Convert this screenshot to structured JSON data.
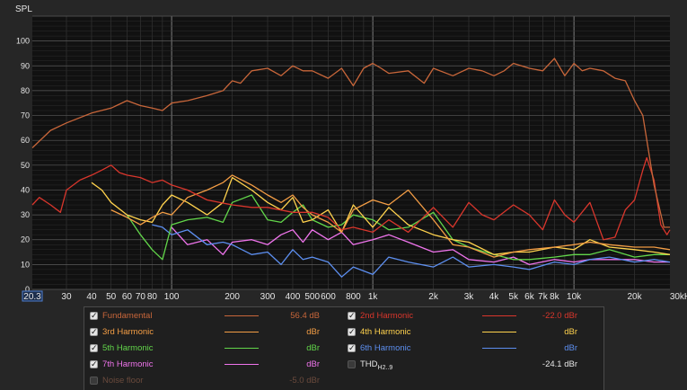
{
  "chart_data": {
    "type": "line",
    "ylabel": "SPL",
    "xscale": "log",
    "xlim": [
      20.3,
      30000
    ],
    "ylim": [
      0,
      110
    ],
    "grid": true,
    "y_ticks": [
      0,
      10,
      20,
      30,
      40,
      50,
      60,
      70,
      80,
      90,
      100
    ],
    "x_ticks": [
      {
        "v": 20.3,
        "label": "20.3"
      },
      {
        "v": 30,
        "label": "30"
      },
      {
        "v": 40,
        "label": "40"
      },
      {
        "v": 50,
        "label": "50"
      },
      {
        "v": 60,
        "label": "60"
      },
      {
        "v": 70,
        "label": "70"
      },
      {
        "v": 80,
        "label": "80"
      },
      {
        "v": 100,
        "label": "100"
      },
      {
        "v": 200,
        "label": "200"
      },
      {
        "v": 300,
        "label": "300"
      },
      {
        "v": 400,
        "label": "400"
      },
      {
        "v": 500,
        "label": "500"
      },
      {
        "v": 600,
        "label": "600"
      },
      {
        "v": 800,
        "label": "800"
      },
      {
        "v": 1000,
        "label": "1k"
      },
      {
        "v": 2000,
        "label": "2k"
      },
      {
        "v": 3000,
        "label": "3k"
      },
      {
        "v": 4000,
        "label": "4k"
      },
      {
        "v": 5000,
        "label": "5k"
      },
      {
        "v": 6000,
        "label": "6k"
      },
      {
        "v": 7000,
        "label": "7k"
      },
      {
        "v": 8000,
        "label": "8k"
      },
      {
        "v": 10000,
        "label": "10k"
      },
      {
        "v": 20000,
        "label": "20k"
      },
      {
        "v": 30000,
        "label": "30kHz"
      }
    ],
    "series": [
      {
        "name": "Fundamental",
        "color": "#c8663a",
        "x": [
          20.3,
          25,
          30,
          40,
          50,
          60,
          70,
          80,
          90,
          100,
          120,
          150,
          180,
          200,
          220,
          250,
          300,
          350,
          400,
          450,
          500,
          600,
          700,
          800,
          900,
          1000,
          1100,
          1200,
          1500,
          1800,
          2000,
          2500,
          3000,
          3500,
          4000,
          4500,
          5000,
          6000,
          7000,
          8000,
          9000,
          10000,
          11000,
          12000,
          14000,
          16000,
          18000,
          20000,
          22000,
          25000,
          28000,
          30000
        ],
        "y": [
          57,
          64,
          67,
          71,
          73,
          76,
          74,
          73,
          72,
          75,
          76,
          78,
          80,
          84,
          83,
          88,
          89,
          86,
          90,
          88,
          88,
          85,
          89,
          82,
          89,
          91,
          89,
          87,
          88,
          83,
          89,
          86,
          89,
          88,
          86,
          88,
          91,
          89,
          88,
          93,
          86,
          91,
          88,
          89,
          88,
          85,
          84,
          76,
          70,
          42,
          25,
          25
        ]
      },
      {
        "name": "2nd Harmonic",
        "color": "#d9362c",
        "x": [
          20.3,
          22,
          25,
          28,
          30,
          35,
          40,
          45,
          50,
          55,
          60,
          70,
          80,
          90,
          100,
          120,
          150,
          200,
          250,
          300,
          400,
          500,
          600,
          700,
          800,
          1000,
          1200,
          1500,
          2000,
          2500,
          3000,
          3500,
          4000,
          5000,
          6000,
          7000,
          8000,
          9000,
          10000,
          12000,
          14000,
          16000,
          18000,
          20000,
          22000,
          23000,
          25000,
          27000,
          29000,
          30000
        ],
        "y": [
          34,
          37,
          34,
          31,
          40,
          44,
          46,
          48,
          50,
          47,
          46,
          45,
          43,
          44,
          42,
          40,
          36,
          34,
          33,
          33,
          31,
          31,
          29,
          24,
          25,
          23,
          28,
          23,
          33,
          25,
          35,
          30,
          28,
          34,
          30,
          24,
          36,
          30,
          27,
          35,
          20,
          21,
          32,
          36,
          48,
          53,
          44,
          26,
          22,
          24
        ]
      },
      {
        "name": "3rd Harmonic",
        "color": "#f39d45",
        "x": [
          20.3,
          50,
          60,
          70,
          80,
          90,
          100,
          120,
          150,
          180,
          200,
          250,
          300,
          350,
          400,
          450,
          500,
          600,
          700,
          800,
          1000,
          1200,
          1500,
          2000,
          2500,
          3000,
          4000,
          5000,
          6000,
          8000,
          10000,
          12000,
          15000,
          20000,
          25000,
          30000
        ],
        "y": [
          null,
          32,
          29,
          26,
          29,
          31,
          30,
          37,
          40,
          43,
          46,
          42,
          38,
          35,
          38,
          33,
          30,
          27,
          23,
          32,
          36,
          34,
          40,
          28,
          18,
          17,
          13,
          15,
          16,
          17,
          18,
          19,
          18,
          17,
          17,
          16
        ]
      },
      {
        "name": "4th Harmonic",
        "color": "#ffd24d",
        "x": [
          20.3,
          40,
          45,
          50,
          60,
          70,
          80,
          90,
          100,
          120,
          150,
          180,
          200,
          250,
          300,
          350,
          400,
          450,
          500,
          600,
          700,
          800,
          1000,
          1200,
          1500,
          2000,
          2500,
          3000,
          4000,
          5000,
          6000,
          8000,
          10000,
          12000,
          15000,
          20000,
          25000,
          30000
        ],
        "y": [
          null,
          43,
          40,
          35,
          30,
          28,
          27,
          34,
          38,
          35,
          30,
          35,
          45,
          40,
          35,
          32,
          37,
          27,
          28,
          32,
          23,
          34,
          25,
          33,
          26,
          22,
          20,
          19,
          14,
          15,
          15,
          17,
          16,
          20,
          17,
          16,
          15,
          14
        ]
      },
      {
        "name": "5th Harmonic",
        "color": "#62d64a",
        "x": [
          20.3,
          60,
          70,
          80,
          90,
          100,
          120,
          150,
          180,
          200,
          250,
          300,
          350,
          400,
          450,
          500,
          600,
          700,
          800,
          1000,
          1200,
          1500,
          2000,
          2500,
          3000,
          4000,
          5000,
          6000,
          8000,
          10000,
          12000,
          15000,
          20000,
          25000,
          30000
        ],
        "y": [
          null,
          30,
          22,
          16,
          12,
          26,
          28,
          29,
          27,
          35,
          38,
          28,
          27,
          31,
          34,
          28,
          25,
          26,
          30,
          28,
          24,
          25,
          31,
          20,
          17,
          14,
          12,
          12,
          13,
          14,
          14,
          16,
          13,
          14,
          14
        ]
      },
      {
        "name": "6th Harmonic",
        "color": "#5d8ff0",
        "x": [
          20.3,
          80,
          90,
          100,
          120,
          150,
          180,
          200,
          250,
          300,
          350,
          400,
          450,
          500,
          600,
          700,
          800,
          1000,
          1200,
          1500,
          2000,
          2500,
          3000,
          4000,
          5000,
          6000,
          8000,
          10000,
          12000,
          15000,
          20000,
          25000,
          30000
        ],
        "y": [
          null,
          26,
          25,
          22,
          24,
          18,
          19,
          18,
          14,
          15,
          10,
          16,
          12,
          13,
          11,
          5,
          9,
          6,
          13,
          11,
          9,
          13,
          9,
          10,
          9,
          8,
          11,
          10,
          12,
          13,
          11,
          12,
          11
        ]
      },
      {
        "name": "7th Harmonic",
        "color": "#ef74ec",
        "x": [
          20.3,
          100,
          120,
          150,
          180,
          200,
          250,
          300,
          350,
          400,
          450,
          500,
          600,
          700,
          800,
          1000,
          1200,
          1500,
          2000,
          2500,
          3000,
          4000,
          5000,
          6000,
          8000,
          10000,
          12000,
          15000,
          20000,
          25000,
          30000
        ],
        "y": [
          null,
          25,
          18,
          20,
          14,
          19,
          20,
          18,
          22,
          24,
          19,
          24,
          20,
          23,
          18,
          20,
          22,
          19,
          15,
          16,
          12,
          11,
          13,
          10,
          12,
          11,
          12,
          12,
          12,
          11,
          11
        ]
      }
    ]
  },
  "legend": {
    "items": [
      {
        "key": "fundamental",
        "label": "Fundamental",
        "value": "56.4 dB",
        "color": "#c8663a",
        "checked": true,
        "col": 0,
        "row": 0
      },
      {
        "key": "h2",
        "label": "2nd Harmonic",
        "value": "-22.0 dBr",
        "color": "#d9362c",
        "checked": true,
        "col": 1,
        "row": 0
      },
      {
        "key": "h3",
        "label": "3rd Harmonic",
        "value": "dBr",
        "color": "#f39d45",
        "checked": true,
        "col": 0,
        "row": 1
      },
      {
        "key": "h4",
        "label": "4th Harmonic",
        "value": "dBr",
        "color": "#ffd24d",
        "checked": true,
        "col": 1,
        "row": 1
      },
      {
        "key": "h5",
        "label": "5th Harmonic",
        "value": "dBr",
        "color": "#62d64a",
        "checked": true,
        "col": 0,
        "row": 2
      },
      {
        "key": "h6",
        "label": "6th Harmonic",
        "value": "dBr",
        "color": "#5d8ff0",
        "checked": true,
        "col": 1,
        "row": 2
      },
      {
        "key": "h7",
        "label": "7th Harmonic",
        "value": "dBr",
        "color": "#ef74ec",
        "checked": true,
        "col": 0,
        "row": 3
      },
      {
        "key": "noise",
        "label": "Noise floor",
        "value": "-5.0 dBr",
        "color": "#6a4a3c",
        "checked": false,
        "col": 0,
        "row": 4
      }
    ],
    "thd": {
      "label": "THD",
      "sub": "H2..9",
      "value": "-24.1 dBr"
    }
  }
}
